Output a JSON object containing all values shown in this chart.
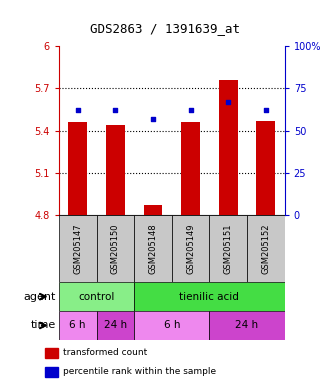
{
  "title": "GDS2863 / 1391639_at",
  "samples": [
    "GSM205147",
    "GSM205150",
    "GSM205148",
    "GSM205149",
    "GSM205151",
    "GSM205152"
  ],
  "bar_values": [
    5.46,
    5.44,
    4.87,
    5.46,
    5.76,
    5.47
  ],
  "bar_bottom": 4.8,
  "percentile_values": [
    62,
    62,
    57,
    62,
    67,
    62
  ],
  "ylim_left": [
    4.8,
    6.0
  ],
  "ylim_right": [
    0,
    100
  ],
  "yticks_left": [
    4.8,
    5.1,
    5.4,
    5.7,
    6.0
  ],
  "ytick_labels_left": [
    "4.8",
    "5.1",
    "5.4",
    "5.7",
    "6"
  ],
  "yticks_right": [
    0,
    25,
    50,
    75,
    100
  ],
  "ytick_labels_right": [
    "0",
    "25",
    "50",
    "75",
    "100%"
  ],
  "bar_color": "#cc0000",
  "dot_color": "#0000cc",
  "grid_yticks": [
    5.1,
    5.4,
    5.7
  ],
  "agent_groups": [
    {
      "label": "control",
      "start": 0,
      "end": 2,
      "color": "#88ee88"
    },
    {
      "label": "tienilic acid",
      "start": 2,
      "end": 6,
      "color": "#44dd44"
    }
  ],
  "time_groups": [
    {
      "label": "6 h",
      "start": 0,
      "end": 1,
      "color": "#ee88ee"
    },
    {
      "label": "24 h",
      "start": 1,
      "end": 2,
      "color": "#cc44cc"
    },
    {
      "label": "6 h",
      "start": 2,
      "end": 4,
      "color": "#ee88ee"
    },
    {
      "label": "24 h",
      "start": 4,
      "end": 6,
      "color": "#cc44cc"
    }
  ],
  "legend_items": [
    {
      "label": "transformed count",
      "color": "#cc0000"
    },
    {
      "label": "percentile rank within the sample",
      "color": "#0000cc"
    }
  ],
  "left_axis_color": "#cc0000",
  "right_axis_color": "#0000cc",
  "bar_width": 0.5,
  "sample_box_color": "#c8c8c8",
  "fig_width": 3.31,
  "fig_height": 3.84,
  "dpi": 100
}
